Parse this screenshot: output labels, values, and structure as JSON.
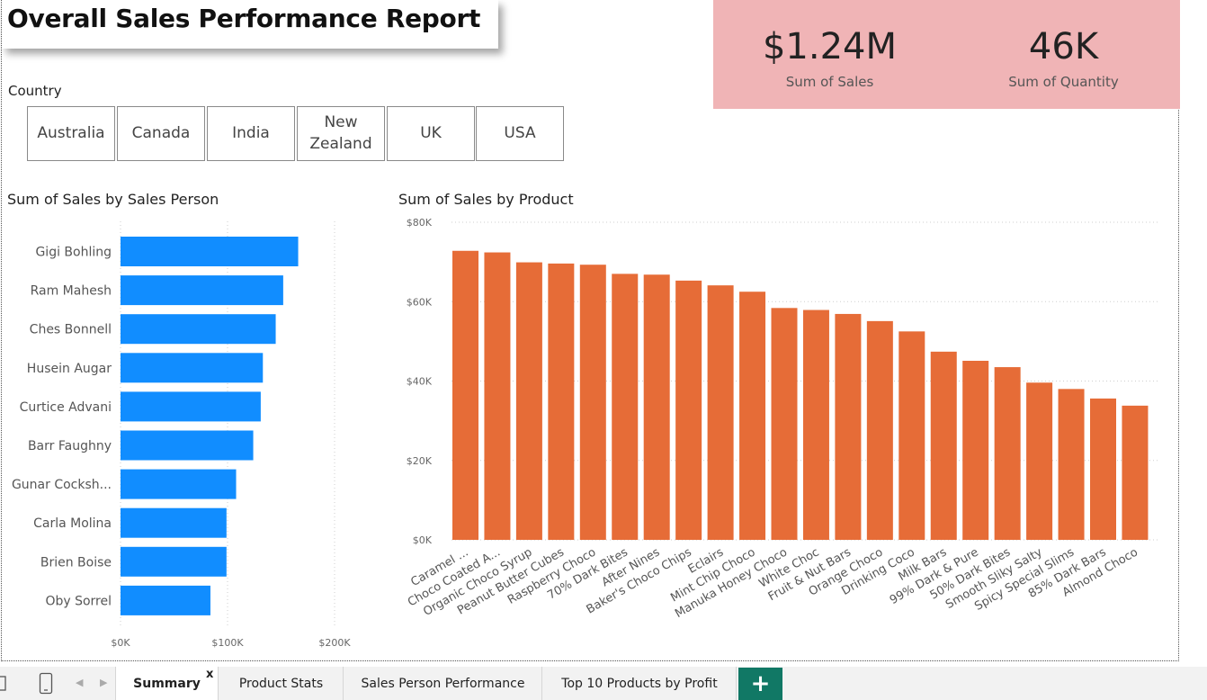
{
  "report": {
    "title": "Overall Sales Performance Report",
    "slicer": {
      "label": "Country",
      "options": [
        "Australia",
        "Canada",
        "India",
        "New\nZealand",
        "UK",
        "USA"
      ]
    },
    "kpis": [
      {
        "value": "$1.24M",
        "label": "Sum of Sales"
      },
      {
        "value": "46K",
        "label": "Sum of Quantity"
      }
    ]
  },
  "colors": {
    "bar_blue": "#118dff",
    "bar_orange": "#e66c37",
    "kpi_background": "#f0b4b6",
    "add_page_button": "#117865"
  },
  "chart_data": [
    {
      "type": "bar",
      "orientation": "horizontal",
      "title": "Sum of Sales by Sales Person",
      "categories": [
        "Gigi Bohling",
        "Ram Mahesh",
        "Ches Bonnell",
        "Husein Augar",
        "Curtice Advani",
        "Barr Faughny",
        "Gunar Cocksh...",
        "Carla Molina",
        "Brien Boise",
        "Oby Sorrel"
      ],
      "values": [
        166000,
        152000,
        145000,
        133000,
        131000,
        124000,
        108000,
        99000,
        99000,
        84000
      ],
      "xlim": [
        0,
        200000
      ],
      "ticks": [
        {
          "value": 0,
          "label": "$0K"
        },
        {
          "value": 100000,
          "label": "$100K"
        },
        {
          "value": 200000,
          "label": "$200K"
        }
      ],
      "grid": true
    },
    {
      "type": "bar",
      "orientation": "vertical",
      "title": "Sum of Sales by Product",
      "categories": [
        "Caramel ...",
        "Choco Coated A...",
        "Organic Choco Syrup",
        "Peanut Butter Cubes",
        "Raspberry Choco",
        "70% Dark Bites",
        "After Nines",
        "Baker's Choco Chips",
        "Eclairs",
        "Mint Chip Choco",
        "Manuka Honey Choco",
        "White Choc",
        "Fruit & Nut Bars",
        "Orange Choco",
        "Drinking Coco",
        "Milk Bars",
        "99% Dark & Pure",
        "50% Dark Bites",
        "Smooth Sliky Salty",
        "Spicy Special Slims",
        "85% Dark Bars",
        "Almond Choco"
      ],
      "values": [
        72800,
        72400,
        69900,
        69600,
        69300,
        67000,
        66800,
        65300,
        64100,
        62500,
        58400,
        57900,
        56900,
        55100,
        52500,
        47400,
        45100,
        43500,
        39600,
        38000,
        35600,
        33800
      ],
      "ylim": [
        0,
        80000
      ],
      "ticks": [
        {
          "value": 0,
          "label": "$0K"
        },
        {
          "value": 20000,
          "label": "$20K"
        },
        {
          "value": 40000,
          "label": "$40K"
        },
        {
          "value": 60000,
          "label": "$60K"
        },
        {
          "value": 80000,
          "label": "$80K"
        }
      ],
      "grid": true
    }
  ],
  "tabs": [
    {
      "label": "Summary",
      "active": true
    },
    {
      "label": "Product Stats",
      "active": false
    },
    {
      "label": "Sales Person Performance",
      "active": false
    },
    {
      "label": "Top 10 Products by Profit",
      "active": false
    }
  ],
  "tab_close_glyph": "x",
  "add_page_glyph": "+",
  "nav": {
    "prev_glyph": "◀",
    "next_glyph": "▶"
  },
  "icons": [
    "page-view-icon",
    "mobile-layout-icon"
  ]
}
